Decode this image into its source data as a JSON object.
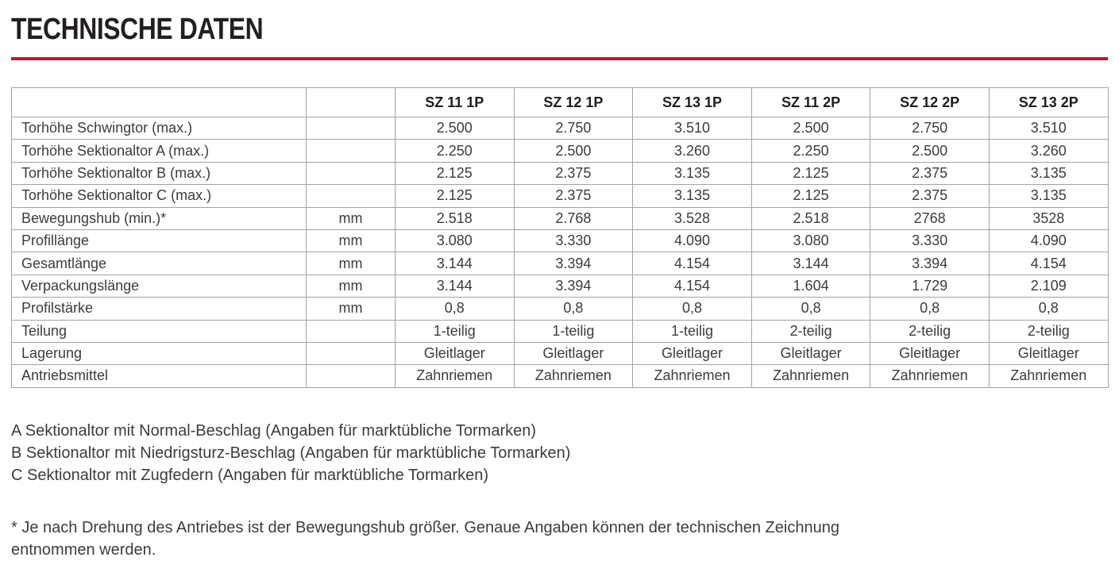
{
  "page": {
    "title": "TECHNISCHE DATEN",
    "accent_color": "#A6213A"
  },
  "table": {
    "columns": [
      "SZ 11 1P",
      "SZ 12 1P",
      "SZ 13 1P",
      "SZ 11 2P",
      "SZ 12 2P",
      "SZ 13 2P"
    ],
    "rows": [
      {
        "label": "Torhöhe Schwingtor (max.)",
        "unit": "",
        "values": [
          "2.500",
          "2.750",
          "3.510",
          "2.500",
          "2.750",
          "3.510"
        ]
      },
      {
        "label": "Torhöhe Sektionaltor A (max.)",
        "unit": "",
        "values": [
          "2.250",
          "2.500",
          "3.260",
          "2.250",
          "2.500",
          "3.260"
        ]
      },
      {
        "label": "Torhöhe Sektionaltor B (max.)",
        "unit": "",
        "values": [
          "2.125",
          "2.375",
          "3.135",
          "2.125",
          "2.375",
          "3.135"
        ]
      },
      {
        "label": "Torhöhe Sektionaltor C (max.)",
        "unit": "",
        "values": [
          "2.125",
          "2.375",
          "3.135",
          "2.125",
          "2.375",
          "3.135"
        ]
      },
      {
        "label": "Bewegungshub (min.)*",
        "unit": "mm",
        "values": [
          "2.518",
          "2.768",
          "3.528",
          "2.518",
          "2768",
          "3528"
        ]
      },
      {
        "label": "Profillänge",
        "unit": "mm",
        "values": [
          "3.080",
          "3.330",
          "4.090",
          "3.080",
          "3.330",
          "4.090"
        ]
      },
      {
        "label": "Gesamtlänge",
        "unit": "mm",
        "values": [
          "3.144",
          "3.394",
          "4.154",
          "3.144",
          "3.394",
          "4.154"
        ]
      },
      {
        "label": "Verpackungslänge",
        "unit": "mm",
        "values": [
          "3.144",
          "3.394",
          "4.154",
          "1.604",
          "1.729",
          "2.109"
        ]
      },
      {
        "label": "Profilstärke",
        "unit": "mm",
        "values": [
          "0,8",
          "0,8",
          "0,8",
          "0,8",
          "0,8",
          "0,8"
        ]
      },
      {
        "label": "Teilung",
        "unit": "",
        "values": [
          "1-teilig",
          "1-teilig",
          "1-teilig",
          "2-teilig",
          "2-teilig",
          "2-teilig"
        ]
      },
      {
        "label": "Lagerung",
        "unit": "",
        "values": [
          "Gleitlager",
          "Gleitlager",
          "Gleitlager",
          "Gleitlager",
          "Gleitlager",
          "Gleitlager"
        ]
      },
      {
        "label": "Antriebsmittel",
        "unit": "",
        "values": [
          "Zahnriemen",
          "Zahnriemen",
          "Zahnriemen",
          "Zahnriemen",
          "Zahnriemen",
          "Zahnriemen"
        ]
      }
    ]
  },
  "footnotes": {
    "letters": [
      "A Sektionaltor mit Normal-Beschlag (Angaben für marktübliche Tormarken)",
      "B Sektionaltor mit Niedrigsturz-Beschlag (Angaben für marktübliche Tormarken)",
      "C Sektionaltor mit Zugfedern (Angaben für marktübliche Tormarken)"
    ],
    "asterisk": "* Je nach Drehung des Antriebes ist der Bewegungshub größer. Genaue Angaben können der technischen Zeichnung entnommen werden."
  }
}
